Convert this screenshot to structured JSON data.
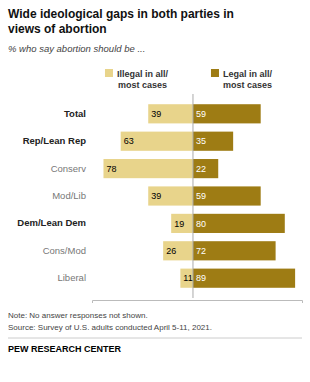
{
  "chart_data": {
    "type": "bar",
    "orientation": "horizontal",
    "title": "Wide ideological gaps in both parties in\nviews of abortion",
    "subtitle": "% who say abortion should be ...",
    "categories": [
      "Total",
      "Rep/Lean Rep",
      "Conserv",
      "Mod/Lib",
      "Dem/Lean Dem",
      "Cons/Mod",
      "Liberal"
    ],
    "series": [
      {
        "name": "Illegal in all/\nmost cases",
        "color": "#e8d48b",
        "values": [
          39,
          63,
          78,
          39,
          19,
          26,
          11
        ]
      },
      {
        "name": "Legal in all/\nmost cases",
        "color": "#9e7c14",
        "values": [
          59,
          35,
          22,
          59,
          80,
          72,
          89
        ]
      }
    ],
    "xlim": [
      -88,
      95
    ],
    "data_labels": true,
    "tick_labels": "y",
    "legend": "top",
    "annotations": [
      "Note: No answer responses not shown.",
      "Source: Survey of U.S. adults conducted April 5-11, 2021.",
      "PEW RESEARCH CENTER"
    ]
  }
}
